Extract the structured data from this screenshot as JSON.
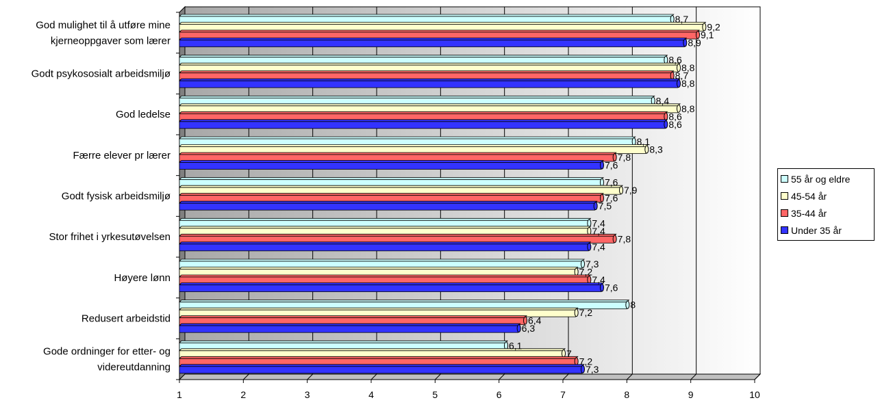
{
  "chart_data": {
    "type": "bar",
    "orientation": "horizontal",
    "categories": [
      "God mulighet til å utføre mine kjerneoppgaver som lærer",
      "Godt psykososialt arbeidsmiljø",
      "God ledelse",
      "Færre elever pr lærer",
      "Godt fysisk arbeidsmiljø",
      "Stor frihet i yrkesutøvelsen",
      "Høyere lønn",
      "Redusert arbeidstid",
      "Gode ordninger for etter- og videreutdanning"
    ],
    "category_lines": [
      [
        "God mulighet til å utføre mine",
        "kjerneoppgaver som lærer"
      ],
      [
        "Godt psykososialt arbeidsmiljø"
      ],
      [
        "God ledelse"
      ],
      [
        "Færre elever pr lærer"
      ],
      [
        "Godt fysisk arbeidsmiljø"
      ],
      [
        "Stor frihet i yrkesutøvelsen"
      ],
      [
        "Høyere lønn"
      ],
      [
        "Redusert arbeidstid"
      ],
      [
        "Gode ordninger for etter- og",
        "videreutdanning"
      ]
    ],
    "series": [
      {
        "name": "55 år og eldre",
        "color": "#ccffff",
        "values": [
          8.7,
          8.6,
          8.4,
          8.1,
          7.6,
          7.4,
          7.3,
          8,
          6.1
        ],
        "labels": [
          "8,7",
          "8,6",
          "8,4",
          "8,1",
          "7,6",
          "7,4",
          "7,3",
          "8",
          "6,1"
        ]
      },
      {
        "name": "45-54 år",
        "color": "#ffffcc",
        "values": [
          9.2,
          8.8,
          8.8,
          8.3,
          7.9,
          7.4,
          7.2,
          7.2,
          7
        ],
        "labels": [
          "9,2",
          "8,8",
          "8,8",
          "8,3",
          "7,9",
          "7,4",
          "7,2",
          "7,2",
          "7"
        ]
      },
      {
        "name": "35-44 år",
        "color": "#ff6666",
        "values": [
          9.1,
          8.7,
          8.6,
          7.8,
          7.6,
          7.8,
          7.4,
          6.4,
          7.2
        ],
        "labels": [
          "9,1",
          "8,7",
          "8,6",
          "7,8",
          "7,6",
          "7,8",
          "7,4",
          "6,4",
          "7,2"
        ]
      },
      {
        "name": "Under 35 år",
        "color": "#3333ff",
        "values": [
          8.9,
          8.8,
          8.6,
          7.6,
          7.5,
          7.4,
          7.6,
          6.3,
          7.3
        ],
        "labels": [
          "8,9",
          "8,8",
          "8,6",
          "7,6",
          "7,5",
          "7,4",
          "7,6",
          "6,3",
          "7,3"
        ]
      }
    ],
    "legend_order": [
      0,
      1,
      2,
      3
    ],
    "x_ticks": [
      "1",
      "2",
      "3",
      "4",
      "5",
      "6",
      "7",
      "8",
      "9",
      "10"
    ],
    "xlim": [
      1,
      10
    ],
    "grid": true,
    "legend_position": "right",
    "title": "",
    "xlabel": "",
    "ylabel": ""
  }
}
